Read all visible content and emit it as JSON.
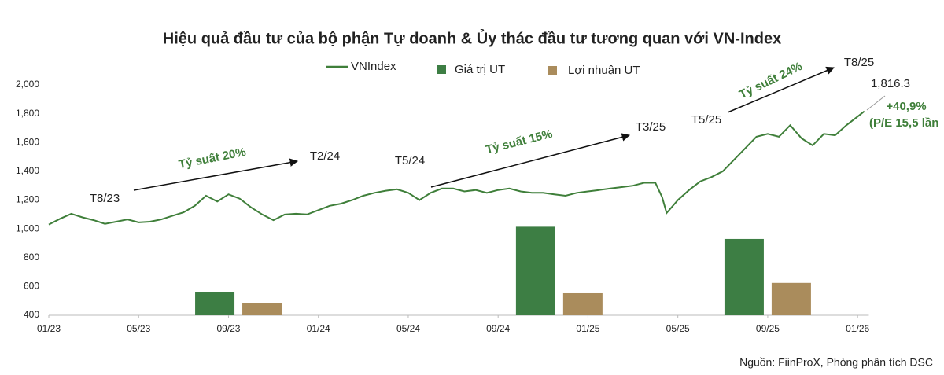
{
  "chart_data": {
    "type": "line",
    "title": "Hiệu quả đầu tư của bộ phận Tự doanh & Ủy thác đầu tư tương quan với VN-Index",
    "xlim": [
      0,
      36.5
    ],
    "xticks": [
      {
        "value": 0,
        "label": "01/23"
      },
      {
        "value": 4,
        "label": "05/23"
      },
      {
        "value": 8,
        "label": "09/23"
      },
      {
        "value": 12,
        "label": "01/24"
      },
      {
        "value": 16,
        "label": "05/24"
      },
      {
        "value": 20,
        "label": "09/24"
      },
      {
        "value": 24,
        "label": "01/25"
      },
      {
        "value": 28,
        "label": "05/25"
      },
      {
        "value": 32,
        "label": "09/25"
      },
      {
        "value": 36,
        "label": "01/26"
      }
    ],
    "ylim": [
      400,
      2000
    ],
    "yticks": [
      400,
      600,
      800,
      {
        "value": 1000,
        "label": "1,000"
      },
      {
        "value": 1200,
        "label": "1,200"
      },
      {
        "value": 1400,
        "label": "1,400"
      },
      {
        "value": 1600,
        "label": "1,600"
      },
      {
        "value": 1800,
        "label": "1,800"
      },
      {
        "value": 2000,
        "label": "2,000"
      }
    ],
    "series": [
      {
        "name": "VNIndex",
        "type": "line",
        "color": "#3f7f3a",
        "x": [
          0,
          0.5,
          1,
          1.5,
          2,
          2.5,
          3,
          3.5,
          4,
          4.5,
          5,
          5.5,
          6,
          6.5,
          7,
          7.5,
          8,
          8.5,
          9,
          9.5,
          10,
          10.5,
          11,
          11.5,
          12,
          12.5,
          13,
          13.5,
          14,
          14.5,
          15,
          15.5,
          16,
          16.5,
          17,
          17.5,
          18,
          18.5,
          19,
          19.5,
          20,
          20.5,
          21,
          21.5,
          22,
          22.5,
          23,
          23.5,
          24,
          24.5,
          25,
          25.5,
          26,
          26.5,
          27,
          27.3,
          27.5,
          28,
          28.5,
          29,
          29.5,
          30,
          30.5,
          31,
          31.5,
          32,
          32.5,
          33,
          33.5,
          34,
          34.5,
          35,
          35.5,
          36,
          36.3
        ],
        "values": [
          1030,
          1070,
          1105,
          1080,
          1060,
          1035,
          1050,
          1065,
          1045,
          1050,
          1065,
          1090,
          1115,
          1160,
          1230,
          1190,
          1240,
          1210,
          1150,
          1100,
          1060,
          1100,
          1105,
          1100,
          1130,
          1160,
          1175,
          1200,
          1230,
          1250,
          1265,
          1275,
          1250,
          1200,
          1250,
          1280,
          1280,
          1260,
          1270,
          1250,
          1270,
          1280,
          1260,
          1250,
          1250,
          1240,
          1230,
          1250,
          1260,
          1270,
          1280,
          1290,
          1300,
          1320,
          1320,
          1220,
          1110,
          1200,
          1270,
          1330,
          1360,
          1400,
          1480,
          1560,
          1640,
          1660,
          1640,
          1720,
          1630,
          1580,
          1660,
          1650,
          1720,
          1780,
          1816.3
        ]
      },
      {
        "name": "Giá trị UT",
        "type": "bar",
        "color": "#3d7e44",
        "x": [
          7.39,
          21.67,
          30.95
        ],
        "values": [
          560,
          1015,
          930
        ]
      },
      {
        "name": "Lợi nhuận UT",
        "type": "bar",
        "color": "#aa8c5c",
        "x": [
          9.49,
          23.77,
          33.05
        ],
        "values": [
          485,
          553,
          625
        ]
      }
    ],
    "annotations": [
      "Tỷ suất 20%",
      "T8/23",
      "T2/24",
      "T5/24",
      "Tỷ suất 15%",
      "T3/25",
      "T5/25",
      "Tỷ suất 24%",
      "T8/25",
      "1,816.3",
      "+40,9%",
      "(P/E 15,5 lần"
    ],
    "source": "Nguồn: FiinProX, Phòng phân tích DSC"
  }
}
